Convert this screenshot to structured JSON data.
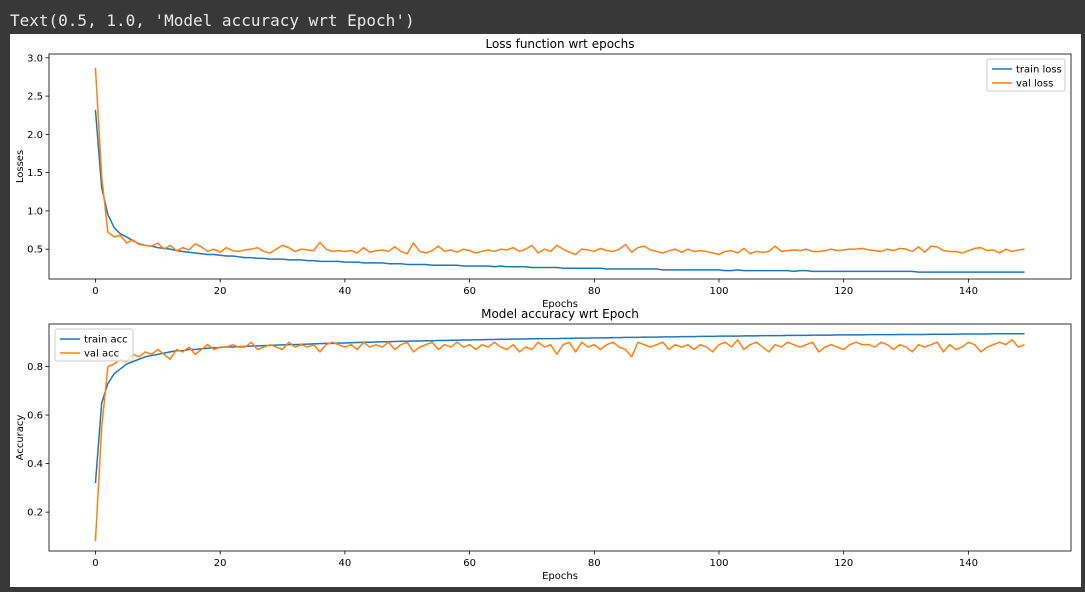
{
  "output_text": "Text(0.5, 1.0, 'Model accuracy wrt Epoch')",
  "colors": {
    "train": "#1f77b4",
    "val": "#ff7f0e",
    "cell_bg": "#383838"
  },
  "chart_data": [
    {
      "type": "line",
      "title": "Loss function wrt epochs",
      "xlabel": "Epochs",
      "ylabel": "Losses",
      "xlim": [
        -7.45,
        156.45
      ],
      "ylim": [
        0.11,
        3.05
      ],
      "xticks": [
        0,
        20,
        40,
        60,
        80,
        100,
        120,
        140
      ],
      "yticks": [
        0.5,
        1.0,
        1.5,
        2.0,
        2.5,
        3.0
      ],
      "ytick_labels": [
        "0.5",
        "1.0",
        "1.5",
        "2.0",
        "2.5",
        "3.0"
      ],
      "legend": "upper right",
      "series": [
        {
          "name": "train loss",
          "color": "#1f77b4",
          "x_range": [
            0,
            149
          ],
          "values": [
            2.32,
            1.3,
            0.95,
            0.78,
            0.7,
            0.66,
            0.61,
            0.57,
            0.55,
            0.54,
            0.52,
            0.51,
            0.5,
            0.48,
            0.47,
            0.46,
            0.45,
            0.44,
            0.43,
            0.43,
            0.42,
            0.41,
            0.41,
            0.4,
            0.39,
            0.39,
            0.38,
            0.38,
            0.37,
            0.37,
            0.37,
            0.36,
            0.36,
            0.36,
            0.35,
            0.35,
            0.34,
            0.34,
            0.34,
            0.34,
            0.33,
            0.33,
            0.33,
            0.32,
            0.32,
            0.32,
            0.32,
            0.31,
            0.31,
            0.31,
            0.3,
            0.3,
            0.3,
            0.3,
            0.29,
            0.29,
            0.29,
            0.29,
            0.29,
            0.28,
            0.28,
            0.28,
            0.28,
            0.28,
            0.27,
            0.28,
            0.27,
            0.27,
            0.27,
            0.27,
            0.26,
            0.26,
            0.26,
            0.26,
            0.26,
            0.25,
            0.25,
            0.25,
            0.25,
            0.25,
            0.25,
            0.25,
            0.24,
            0.24,
            0.24,
            0.24,
            0.24,
            0.24,
            0.24,
            0.24,
            0.24,
            0.23,
            0.23,
            0.23,
            0.23,
            0.23,
            0.23,
            0.23,
            0.23,
            0.23,
            0.23,
            0.22,
            0.22,
            0.23,
            0.22,
            0.22,
            0.22,
            0.22,
            0.22,
            0.22,
            0.22,
            0.22,
            0.21,
            0.22,
            0.22,
            0.21,
            0.21,
            0.21,
            0.21,
            0.21,
            0.21,
            0.21,
            0.21,
            0.21,
            0.21,
            0.21,
            0.21,
            0.21,
            0.21,
            0.21,
            0.21,
            0.21,
            0.2,
            0.2,
            0.2,
            0.2,
            0.2,
            0.2,
            0.2,
            0.2,
            0.2,
            0.2,
            0.2,
            0.2,
            0.2,
            0.2,
            0.2,
            0.2,
            0.2,
            0.2
          ]
        },
        {
          "name": "val loss",
          "color": "#ff7f0e",
          "x_range": [
            0,
            149
          ],
          "values": [
            2.87,
            1.45,
            0.72,
            0.66,
            0.68,
            0.58,
            0.62,
            0.56,
            0.55,
            0.54,
            0.58,
            0.5,
            0.55,
            0.48,
            0.52,
            0.49,
            0.57,
            0.53,
            0.47,
            0.5,
            0.46,
            0.52,
            0.48,
            0.47,
            0.49,
            0.5,
            0.52,
            0.47,
            0.45,
            0.5,
            0.55,
            0.52,
            0.47,
            0.5,
            0.49,
            0.48,
            0.59,
            0.5,
            0.47,
            0.48,
            0.47,
            0.48,
            0.45,
            0.52,
            0.46,
            0.48,
            0.49,
            0.47,
            0.53,
            0.47,
            0.44,
            0.58,
            0.47,
            0.45,
            0.48,
            0.54,
            0.47,
            0.49,
            0.46,
            0.5,
            0.48,
            0.45,
            0.47,
            0.49,
            0.47,
            0.5,
            0.49,
            0.52,
            0.47,
            0.5,
            0.55,
            0.45,
            0.5,
            0.47,
            0.55,
            0.5,
            0.46,
            0.43,
            0.5,
            0.49,
            0.47,
            0.51,
            0.48,
            0.47,
            0.5,
            0.56,
            0.46,
            0.52,
            0.54,
            0.49,
            0.47,
            0.45,
            0.48,
            0.5,
            0.46,
            0.5,
            0.47,
            0.48,
            0.47,
            0.45,
            0.43,
            0.47,
            0.48,
            0.45,
            0.51,
            0.44,
            0.47,
            0.46,
            0.47,
            0.54,
            0.47,
            0.48,
            0.49,
            0.48,
            0.5,
            0.47,
            0.47,
            0.48,
            0.5,
            0.48,
            0.49,
            0.5,
            0.5,
            0.51,
            0.49,
            0.48,
            0.47,
            0.5,
            0.48,
            0.51,
            0.5,
            0.47,
            0.53,
            0.46,
            0.54,
            0.53,
            0.48,
            0.47,
            0.47,
            0.45,
            0.48,
            0.51,
            0.52,
            0.48,
            0.49,
            0.45,
            0.5,
            0.47,
            0.49,
            0.5
          ]
        }
      ]
    },
    {
      "type": "line",
      "title": "Model accuracy wrt Epoch",
      "xlabel": "Epochs",
      "ylabel": "Accuracy",
      "xlim": [
        -7.45,
        156.45
      ],
      "ylim": [
        0.04,
        0.975
      ],
      "xticks": [
        0,
        20,
        40,
        60,
        80,
        100,
        120,
        140
      ],
      "yticks": [
        0.2,
        0.4,
        0.6,
        0.8
      ],
      "ytick_labels": [
        "0.2",
        "0.4",
        "0.6",
        "0.8"
      ],
      "legend": "upper left",
      "series": [
        {
          "name": "train acc",
          "color": "#1f77b4",
          "x_range": [
            0,
            149
          ],
          "values": [
            0.32,
            0.65,
            0.73,
            0.77,
            0.79,
            0.81,
            0.82,
            0.83,
            0.84,
            0.845,
            0.85,
            0.855,
            0.86,
            0.865,
            0.865,
            0.87,
            0.87,
            0.873,
            0.875,
            0.877,
            0.878,
            0.88,
            0.88,
            0.882,
            0.883,
            0.884,
            0.885,
            0.886,
            0.887,
            0.888,
            0.889,
            0.89,
            0.89,
            0.891,
            0.892,
            0.893,
            0.894,
            0.895,
            0.895,
            0.896,
            0.897,
            0.898,
            0.899,
            0.9,
            0.9,
            0.901,
            0.902,
            0.902,
            0.903,
            0.904,
            0.904,
            0.905,
            0.905,
            0.906,
            0.906,
            0.907,
            0.907,
            0.908,
            0.908,
            0.909,
            0.909,
            0.91,
            0.91,
            0.911,
            0.911,
            0.912,
            0.912,
            0.913,
            0.913,
            0.913,
            0.914,
            0.914,
            0.915,
            0.915,
            0.915,
            0.916,
            0.916,
            0.917,
            0.917,
            0.917,
            0.918,
            0.918,
            0.918,
            0.919,
            0.919,
            0.92,
            0.92,
            0.92,
            0.921,
            0.921,
            0.921,
            0.922,
            0.922,
            0.922,
            0.923,
            0.923,
            0.923,
            0.924,
            0.924,
            0.924,
            0.925,
            0.925,
            0.925,
            0.925,
            0.926,
            0.926,
            0.926,
            0.927,
            0.927,
            0.927,
            0.927,
            0.928,
            0.928,
            0.928,
            0.928,
            0.929,
            0.929,
            0.929,
            0.929,
            0.93,
            0.93,
            0.93,
            0.93,
            0.93,
            0.931,
            0.931,
            0.931,
            0.931,
            0.931,
            0.932,
            0.932,
            0.932,
            0.932,
            0.932,
            0.933,
            0.933,
            0.933,
            0.933,
            0.933,
            0.934,
            0.934,
            0.934,
            0.934,
            0.934,
            0.935,
            0.935,
            0.935,
            0.935,
            0.935,
            0.935
          ]
        },
        {
          "name": "val acc",
          "color": "#ff7f0e",
          "x_range": [
            0,
            149
          ],
          "values": [
            0.08,
            0.55,
            0.8,
            0.81,
            0.83,
            0.82,
            0.85,
            0.84,
            0.86,
            0.85,
            0.87,
            0.85,
            0.83,
            0.87,
            0.86,
            0.88,
            0.85,
            0.87,
            0.89,
            0.87,
            0.88,
            0.88,
            0.89,
            0.88,
            0.88,
            0.9,
            0.87,
            0.88,
            0.89,
            0.88,
            0.87,
            0.9,
            0.88,
            0.89,
            0.88,
            0.89,
            0.86,
            0.89,
            0.9,
            0.89,
            0.88,
            0.89,
            0.87,
            0.9,
            0.88,
            0.89,
            0.88,
            0.9,
            0.87,
            0.89,
            0.9,
            0.86,
            0.88,
            0.89,
            0.9,
            0.87,
            0.89,
            0.88,
            0.9,
            0.88,
            0.89,
            0.87,
            0.89,
            0.88,
            0.9,
            0.88,
            0.87,
            0.89,
            0.86,
            0.88,
            0.87,
            0.9,
            0.88,
            0.89,
            0.85,
            0.89,
            0.9,
            0.86,
            0.9,
            0.88,
            0.89,
            0.87,
            0.89,
            0.9,
            0.88,
            0.87,
            0.84,
            0.9,
            0.89,
            0.88,
            0.89,
            0.9,
            0.87,
            0.89,
            0.88,
            0.89,
            0.87,
            0.89,
            0.88,
            0.86,
            0.89,
            0.9,
            0.88,
            0.91,
            0.87,
            0.89,
            0.9,
            0.88,
            0.86,
            0.89,
            0.88,
            0.9,
            0.89,
            0.88,
            0.89,
            0.9,
            0.86,
            0.88,
            0.89,
            0.88,
            0.87,
            0.89,
            0.9,
            0.89,
            0.89,
            0.88,
            0.9,
            0.89,
            0.87,
            0.89,
            0.88,
            0.86,
            0.89,
            0.88,
            0.89,
            0.9,
            0.86,
            0.89,
            0.87,
            0.88,
            0.9,
            0.89,
            0.86,
            0.88,
            0.89,
            0.9,
            0.89,
            0.91,
            0.88,
            0.89
          ]
        }
      ]
    }
  ]
}
